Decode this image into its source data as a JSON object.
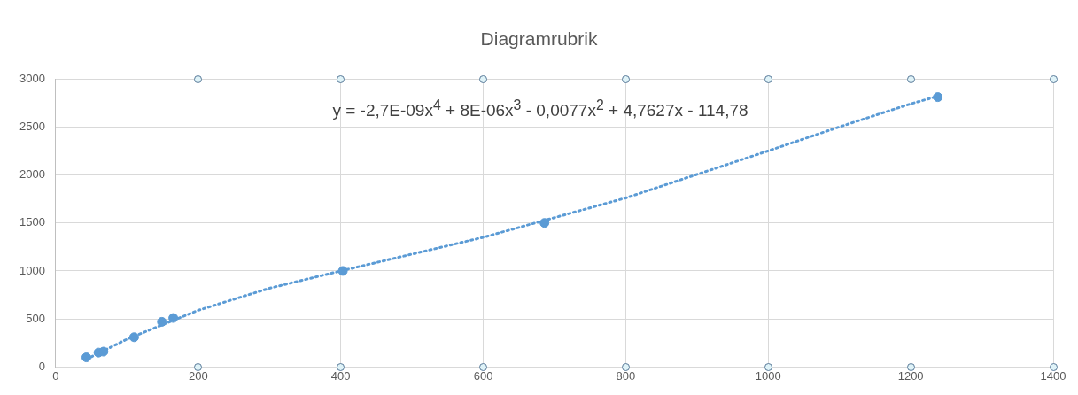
{
  "chart_data": {
    "type": "scatter",
    "title": "Diagramrubrik",
    "xlim": [
      0,
      1400
    ],
    "xticks": [
      0,
      200,
      400,
      600,
      800,
      1000,
      1200,
      1400
    ],
    "ylim": [
      0,
      3000
    ],
    "yticks": [
      0,
      500,
      1000,
      1500,
      2000,
      2500,
      3000
    ],
    "grid": true,
    "legend": false,
    "marker": "circle",
    "annotations": [
      "y = -2,7E-09x$^{4}$ + 8E-06x$^{3}$ - 0,0077x$^{2}$ + 4,7627x - 114,78"
    ],
    "series": [
      {
        "color": "#5b9bd5",
        "x": [
          43,
          60,
          67,
          110,
          149,
          165,
          403,
          686,
          1238
        ],
        "values": [
          100,
          150,
          160,
          310,
          470,
          510,
          1000,
          1500,
          2810
        ]
      },
      {
        "type": "line",
        "color": "#5b9bd5",
        "marker": "none",
        "line_style": "dotted",
        "x": [
          43,
          100,
          200,
          300,
          400,
          600,
          800,
          1000,
          1100,
          1200,
          1238
        ],
        "values": [
          80,
          290,
          590,
          820,
          1000,
          1350,
          1760,
          2250,
          2500,
          2740,
          2820
        ]
      }
    ]
  }
}
